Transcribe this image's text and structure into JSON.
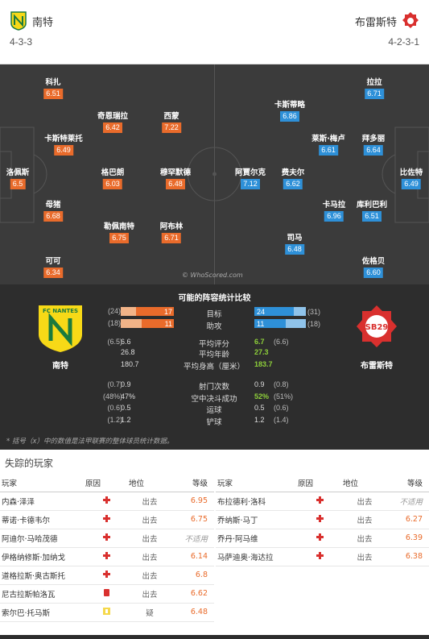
{
  "header": {
    "home": {
      "name": "南特",
      "formation": "4-3-3"
    },
    "away": {
      "name": "布雷斯特",
      "formation": "4-2-3-1"
    }
  },
  "lineup": {
    "home_players": [
      {
        "name": "科扎",
        "rating": "6.51"
      },
      {
        "name": "奇恩瑞拉",
        "rating": "6.42"
      },
      {
        "name": "西蒙",
        "rating": "7.22"
      },
      {
        "name": "卡斯特莱托",
        "rating": "6.49"
      },
      {
        "name": "洛佩斯",
        "rating": "6.5"
      },
      {
        "name": "格巴朗",
        "rating": "6.03"
      },
      {
        "name": "穆罕默德",
        "rating": "6.48"
      },
      {
        "name": "母猪",
        "rating": "6.68"
      },
      {
        "name": "勒佩南特",
        "rating": "6.75"
      },
      {
        "name": "阿布林",
        "rating": "6.71"
      },
      {
        "name": "可可",
        "rating": "6.34"
      }
    ],
    "away_players": [
      {
        "name": "拉拉",
        "rating": "6.71"
      },
      {
        "name": "卡斯蒂略",
        "rating": "6.86"
      },
      {
        "name": "莱斯·梅卢",
        "rating": "6.61"
      },
      {
        "name": "拜多丽",
        "rating": "6.64"
      },
      {
        "name": "阿賈尔克",
        "rating": "7.12"
      },
      {
        "name": "费夫尔",
        "rating": "6.62"
      },
      {
        "name": "比佐特",
        "rating": "6.49"
      },
      {
        "name": "卡马拉",
        "rating": "6.96"
      },
      {
        "name": "库利巴利",
        "rating": "6.51"
      },
      {
        "name": "司马",
        "rating": "6.48"
      },
      {
        "name": "佐格贝",
        "rating": "6.60"
      }
    ],
    "watermark": "© WhoScored.com"
  },
  "stats": {
    "title": "可能的阵容统计比较",
    "home_logo_text": "FC NANTES",
    "away_logo_text": "SB29",
    "home_label": "南特",
    "away_label": "布雷斯特",
    "bar_rows": [
      {
        "label": "目标",
        "home": "17",
        "home_season": "(24)",
        "away": "24",
        "away_season": "(31)",
        "home_frac": 0.71,
        "away_frac": 0.77
      },
      {
        "label": "助攻",
        "home": "11",
        "home_season": "(18)",
        "away": "11",
        "away_season": "(18)",
        "home_frac": 0.61,
        "away_frac": 0.61
      }
    ],
    "rows": [
      {
        "label": "平均评分",
        "home": "6.6",
        "home_season": "(6.5)",
        "away": "6.7",
        "away_season": "(6.6)",
        "away_green": true
      },
      {
        "label": "平均年龄",
        "home": "26.8",
        "home_season": "",
        "away": "27.3",
        "away_season": "",
        "away_green": true
      },
      {
        "label": "平均身高（厘米）",
        "home": "180.7",
        "home_season": "",
        "away": "183.7",
        "away_season": "",
        "away_green": true
      },
      {
        "label": "射门次数",
        "home": "0.9",
        "home_season": "(0.7)",
        "away": "0.9",
        "away_season": "(0.8)",
        "away_green": false
      },
      {
        "label": "空中决斗成功",
        "home": "47%",
        "home_season": "(48%)",
        "away": "52%",
        "away_season": "(51%)",
        "away_green": true
      },
      {
        "label": "运球",
        "home": "0.5",
        "home_season": "(0.6)",
        "away": "0.5",
        "away_season": "(0.6)",
        "away_green": false
      },
      {
        "label": "铲球",
        "home": "1.2",
        "home_season": "(1.2)",
        "away": "1.2",
        "away_season": "(1.4)",
        "away_green": false
      }
    ],
    "footnote": "* 括号（x）中的数值是法甲联赛的整体球员统计数据。"
  },
  "missing": {
    "title": "失踪的玩家",
    "headers": {
      "player": "玩家",
      "reason": "原因",
      "status": "地位",
      "rating": "等级"
    },
    "home": [
      {
        "player": "内森·泽泽",
        "reason": "injury",
        "status": "出去",
        "rating": "6.95"
      },
      {
        "player": "蒂诺·卡德韦尔",
        "reason": "injury",
        "status": "出去",
        "rating": "6.75"
      },
      {
        "player": "阿迪尔·马哈茂德",
        "reason": "injury",
        "status": "出去",
        "rating": "不适用"
      },
      {
        "player": "伊格纳修斯·加纳戈",
        "reason": "injury",
        "status": "出去",
        "rating": "6.14"
      },
      {
        "player": "道格拉斯·奥古斯托",
        "reason": "injury",
        "status": "出去",
        "rating": "6.8"
      },
      {
        "player": "尼古拉斯帕洛瓦",
        "reason": "red-card",
        "status": "出去",
        "rating": "6.62"
      },
      {
        "player": "索尔巴·托马斯",
        "reason": "doubtful",
        "status": "疑",
        "rating": "6.48"
      }
    ],
    "away": [
      {
        "player": "布拉德利·洛科",
        "reason": "injury",
        "status": "出去",
        "rating": "不适用"
      },
      {
        "player": "乔纳斯·马丁",
        "reason": "injury",
        "status": "出去",
        "rating": "6.27"
      },
      {
        "player": "乔丹·阿马维",
        "reason": "injury",
        "status": "出去",
        "rating": "6.39"
      },
      {
        "player": "马萨迪奥·海达拉",
        "reason": "injury",
        "status": "出去",
        "rating": "6.38"
      }
    ]
  },
  "colors": {
    "home_accent": "#e96b2b",
    "away_accent": "#2e90d8",
    "positive": "#8ed03a",
    "nantes_yellow": "#f7d917",
    "nantes_green": "#1a7a3e",
    "brest_red": "#d9302e"
  }
}
